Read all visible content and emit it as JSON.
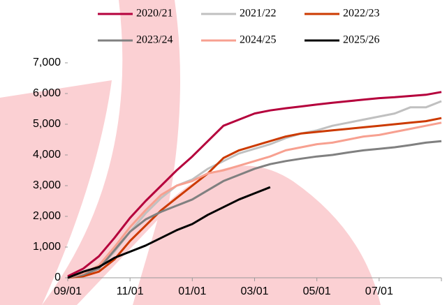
{
  "chart_data": {
    "type": "line",
    "categories": [
      "09/01",
      null,
      null,
      null,
      "11/01",
      null,
      null,
      null,
      "01/01",
      null,
      null,
      null,
      "03/01",
      null,
      null,
      null,
      "05/01",
      null,
      null,
      null,
      "07/01",
      null,
      null,
      null,
      null
    ],
    "series": [
      {
        "name": "2020/21",
        "color": "#b5003c",
        "values": [
          50,
          300,
          700,
          1300,
          1950,
          2500,
          3000,
          3500,
          3950,
          4450,
          4950,
          5150,
          5350,
          5450,
          5520,
          5580,
          5640,
          5700,
          5750,
          5800,
          5850,
          5880,
          5920,
          5960,
          6050
        ]
      },
      {
        "name": "2021/22",
        "color": "#c0c0c0",
        "values": [
          0,
          100,
          300,
          850,
          1500,
          2100,
          2600,
          3000,
          3200,
          3550,
          3800,
          4050,
          4200,
          4350,
          4550,
          4700,
          4800,
          4950,
          5050,
          5150,
          5250,
          5350,
          5550,
          5550,
          5750
        ]
      },
      {
        "name": "2022/23",
        "color": "#cc3a00",
        "values": [
          0,
          50,
          200,
          600,
          1200,
          1700,
          2200,
          2600,
          3000,
          3400,
          3900,
          4150,
          4300,
          4450,
          4600,
          4700,
          4750,
          4800,
          4850,
          4900,
          4950,
          5000,
          5050,
          5100,
          5200
        ]
      },
      {
        "name": "2023/24",
        "color": "#808080",
        "values": [
          0,
          100,
          300,
          900,
          1500,
          1900,
          2150,
          2350,
          2550,
          2850,
          3150,
          3350,
          3550,
          3700,
          3800,
          3880,
          3950,
          4000,
          4080,
          4150,
          4200,
          4250,
          4320,
          4400,
          4450
        ]
      },
      {
        "name": "2024/25",
        "color": "#f7a090",
        "values": [
          0,
          150,
          400,
          1000,
          1650,
          2200,
          2700,
          3000,
          3150,
          3400,
          3500,
          3650,
          3800,
          3950,
          4150,
          4250,
          4350,
          4400,
          4500,
          4600,
          4650,
          4750,
          4850,
          4950,
          5050
        ]
      },
      {
        "name": "2025/26",
        "color": "#000000",
        "values": [
          0,
          200,
          350,
          650,
          850,
          1050,
          1300,
          1550,
          1750,
          2050,
          2300,
          2550,
          2750,
          2950,
          null,
          null,
          null,
          null,
          null,
          null,
          null,
          null,
          null,
          null,
          null
        ]
      }
    ],
    "ylim": [
      0,
      7000
    ],
    "yticks": [
      0,
      {
        "value": 1000,
        "label": "1,000"
      },
      {
        "value": 2000,
        "label": "2,000"
      },
      {
        "value": 3000,
        "label": "3,000"
      },
      {
        "value": 4000,
        "label": "4,000"
      },
      {
        "value": 5000,
        "label": "5,000"
      },
      {
        "value": 6000,
        "label": "6,000"
      },
      {
        "value": 7000,
        "label": "7,000"
      }
    ]
  }
}
